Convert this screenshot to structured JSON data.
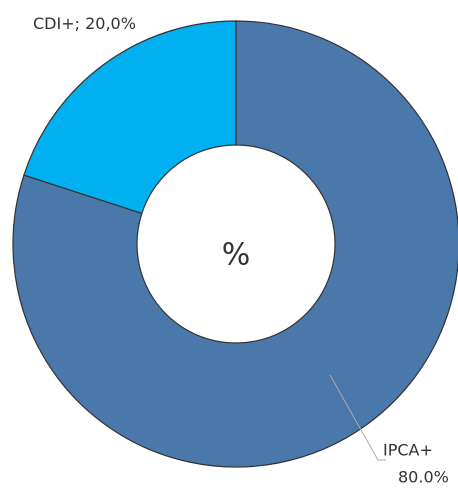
{
  "chart_data": {
    "type": "donut",
    "center_text": "%",
    "categories": [
      "IPCA+",
      "CDI+"
    ],
    "values": [
      80,
      20
    ],
    "value_labels": [
      "80.0%",
      "20,0%"
    ],
    "label_separator": "; ",
    "colors": [
      "#4a78aa",
      "#00b0f0"
    ]
  }
}
